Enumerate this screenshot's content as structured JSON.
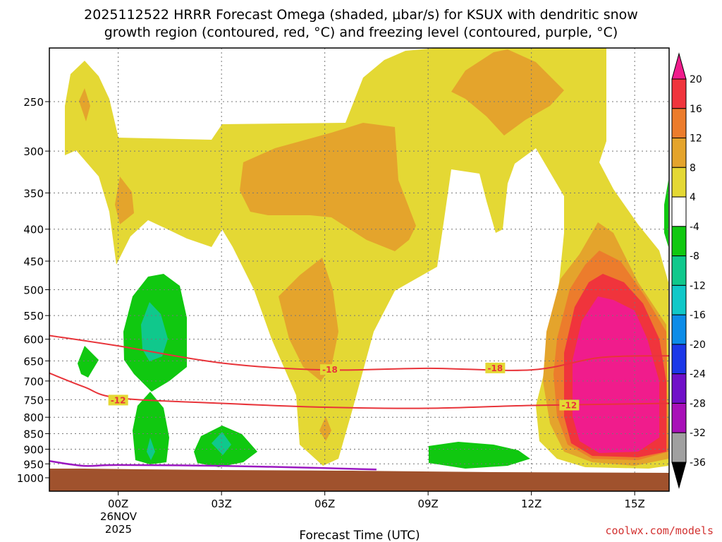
{
  "chart_data": {
    "type": "heatmap",
    "title_line1": "2025112522 HRRR Forecast Omega (shaded, μbar/s) for KSUX with dendritic snow",
    "title_line2": "growth region (contoured, red, °C) and freezing level (contoured, purple, °C)",
    "xlabel": "Forecast Time (UTC)",
    "x_ticks": [
      {
        "hour": 0,
        "label": "00Z"
      },
      {
        "hour": 3,
        "label": "03Z"
      },
      {
        "hour": 6,
        "label": "06Z"
      },
      {
        "hour": 9,
        "label": "09Z"
      },
      {
        "hour": 12,
        "label": "12Z"
      },
      {
        "hour": 15,
        "label": "15Z"
      }
    ],
    "date_label_line1": "26NOV",
    "date_label_line2": "2025",
    "xlim_hours": [
      -2,
      16
    ],
    "y_scale": "log",
    "ylim_mb": [
      1000,
      200
    ],
    "y_ticks": [
      "250",
      "300",
      "350",
      "400",
      "450",
      "500",
      "550",
      "600",
      "650",
      "700",
      "750",
      "800",
      "850",
      "900",
      "950",
      "1000"
    ],
    "grid": "dotted",
    "colorbar": {
      "labels": [
        "20",
        "16",
        "12",
        "8",
        "4",
        "-4",
        "-8",
        "-12",
        "-16",
        "-20",
        "-24",
        "-28",
        "-32",
        "-36"
      ],
      "colors": [
        "#f01c8c",
        "#f0343c",
        "#ec7c2c",
        "#e4a42c",
        "#e4d834",
        "#ffffff",
        "#10c810",
        "#10c88c",
        "#10c8c8",
        "#0c8ce8",
        "#1c38e8",
        "#7010c8",
        "#a810b8",
        "#a0a0a0",
        "#000000"
      ]
    },
    "omega_fields": [
      {
        "level": "4 to 8",
        "color": "#e4d834",
        "description": "broad weak ascent"
      },
      {
        "level": "8 to 12",
        "color": "#e4a42c"
      },
      {
        "level": "12 to 16",
        "color": "#ec7c2c"
      },
      {
        "level": "16 to 20",
        "color": "#f0343c"
      },
      {
        "level": "> 20",
        "color": "#f01c8c"
      },
      {
        "level": "-4 to -8",
        "color": "#10c810"
      },
      {
        "level": "-8 to -12",
        "color": "#10c88c"
      }
    ],
    "isotherms": [
      {
        "label": "-18",
        "color": "#e8343a",
        "points": [
          [
            -2,
            592
          ],
          [
            0,
            615
          ],
          [
            3,
            655
          ],
          [
            6,
            672
          ],
          [
            9,
            668
          ],
          [
            12,
            672
          ],
          [
            14,
            642
          ],
          [
            16,
            638
          ]
        ]
      },
      {
        "label": "-12",
        "color": "#e8343a",
        "points": [
          [
            -2,
            680
          ],
          [
            -1,
            715
          ],
          [
            0,
            745
          ],
          [
            3,
            760
          ],
          [
            6,
            771
          ],
          [
            9,
            774
          ],
          [
            12,
            766
          ],
          [
            16,
            760
          ]
        ]
      }
    ],
    "isotherm_label_positions": [
      {
        "label": "-18",
        "hour": 6.15,
        "mb": 672
      },
      {
        "label": "-18",
        "hour": 10.95,
        "mb": 668
      },
      {
        "label": "-12",
        "hour": 0.0,
        "mb": 752
      },
      {
        "label": "-12",
        "hour": 13.1,
        "mb": 766
      }
    ],
    "freezing_level": {
      "color": "#9a18c0",
      "points": [
        [
          -2,
          940
        ],
        [
          -1,
          957
        ],
        [
          0,
          954
        ],
        [
          3,
          957
        ],
        [
          6,
          965
        ],
        [
          7.5,
          970
        ]
      ]
    },
    "terrain_color": "#a0522d",
    "credit": "coolwx.com/models"
  }
}
